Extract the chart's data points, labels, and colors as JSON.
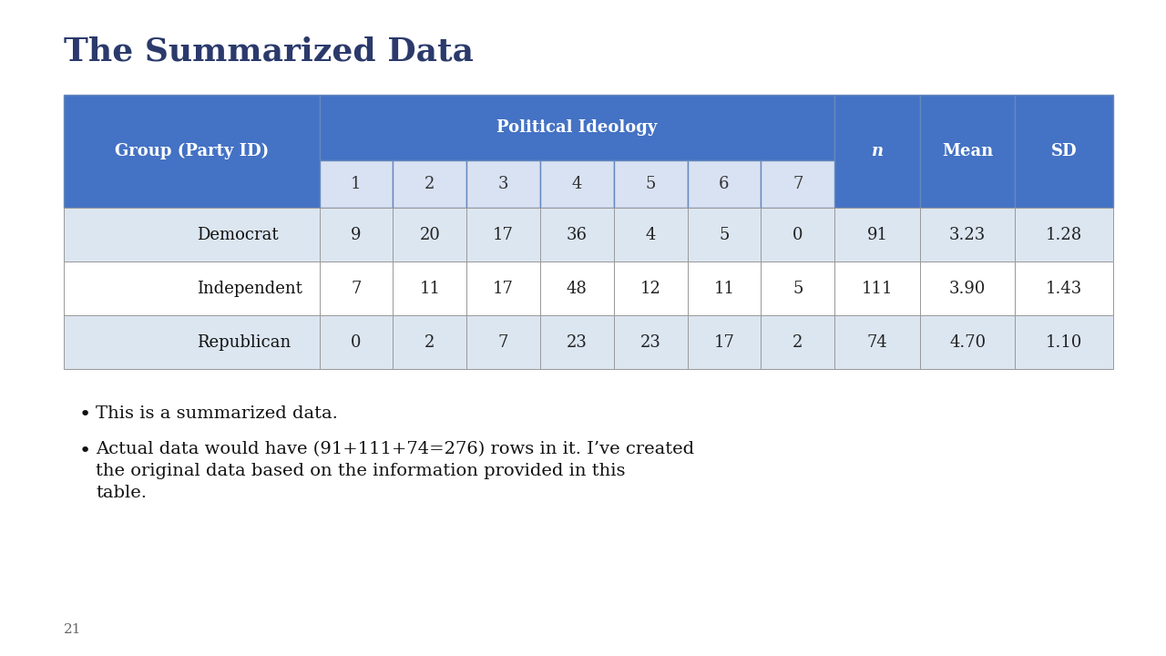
{
  "title": "The Summarized Data",
  "title_color": "#2B3A6B",
  "background_color": "#FFFFFF",
  "header_bg": "#4472C4",
  "header_text_color": "#FFFFFF",
  "subheader_bg": "#7B9ED9",
  "subheader_number_bg": "#D9E2F3",
  "row_colors": [
    "#DCE6F1",
    "#FFFFFF"
  ],
  "col_header": "Group (Party ID)",
  "ideology_header": "Political Ideology",
  "ideology_cols": [
    "1",
    "2",
    "3",
    "4",
    "5",
    "6",
    "7"
  ],
  "extra_cols": [
    "n",
    "Mean",
    "SD"
  ],
  "rows": [
    {
      "group": "Democrat",
      "ideology": [
        9,
        20,
        17,
        36,
        4,
        5,
        0
      ],
      "n": 91,
      "mean": "3.23",
      "sd": "1.28"
    },
    {
      "group": "Independent",
      "ideology": [
        7,
        11,
        17,
        48,
        12,
        11,
        5
      ],
      "n": 111,
      "mean": "3.90",
      "sd": "1.43"
    },
    {
      "group": "Republican",
      "ideology": [
        0,
        2,
        7,
        23,
        23,
        17,
        2
      ],
      "n": 74,
      "mean": "4.70",
      "sd": "1.10"
    }
  ],
  "bullet1": "This is a summarized data.",
  "bullet2": "Actual data would have (91+111+74=276) rows in it. I’ve created\nthe original data based on the information provided in this\ntable.",
  "page_number": "21"
}
